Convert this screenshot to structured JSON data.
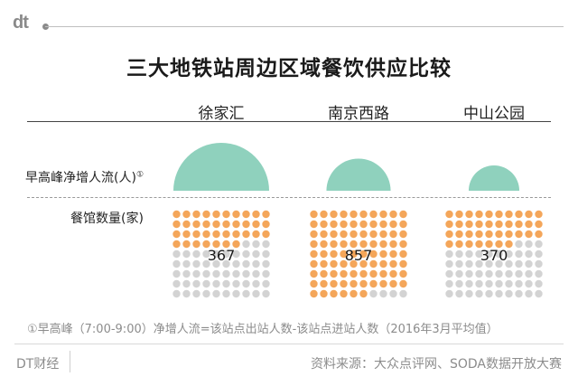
{
  "header": {
    "logo": "dt",
    "title": "三大地铁站周边区域餐饮供应比较"
  },
  "chart_data": {
    "type": "proportional-semicircle-and-dot-grid",
    "title": "三大地铁站周边区域餐饮供应比较",
    "row_labels": {
      "flow": "早高峰净增人流(人)",
      "flow_mark": "①",
      "restaurants": "餐馆数量(家)"
    },
    "stations": [
      {
        "name": "徐家汇",
        "peak_net_inflow_relative": 1.0,
        "restaurants": 367
      },
      {
        "name": "南京西路",
        "peak_net_inflow_relative": 0.45,
        "restaurants": 857
      },
      {
        "name": "中山公园",
        "peak_net_inflow_relative": 0.28,
        "restaurants": 370
      }
    ],
    "colors": {
      "flow": "#8fd1bd",
      "restaurants": "#f4a65a",
      "remaining": "#d3d3d3"
    }
  },
  "footnote": "①早高峰（7:00-9:00）净增人流=该站点出站人数-该站点进站人数（2016年3月平均值）",
  "footer": {
    "brand": "DT财经",
    "source": "资料来源：大众点评网、SODA数据开放大赛"
  }
}
